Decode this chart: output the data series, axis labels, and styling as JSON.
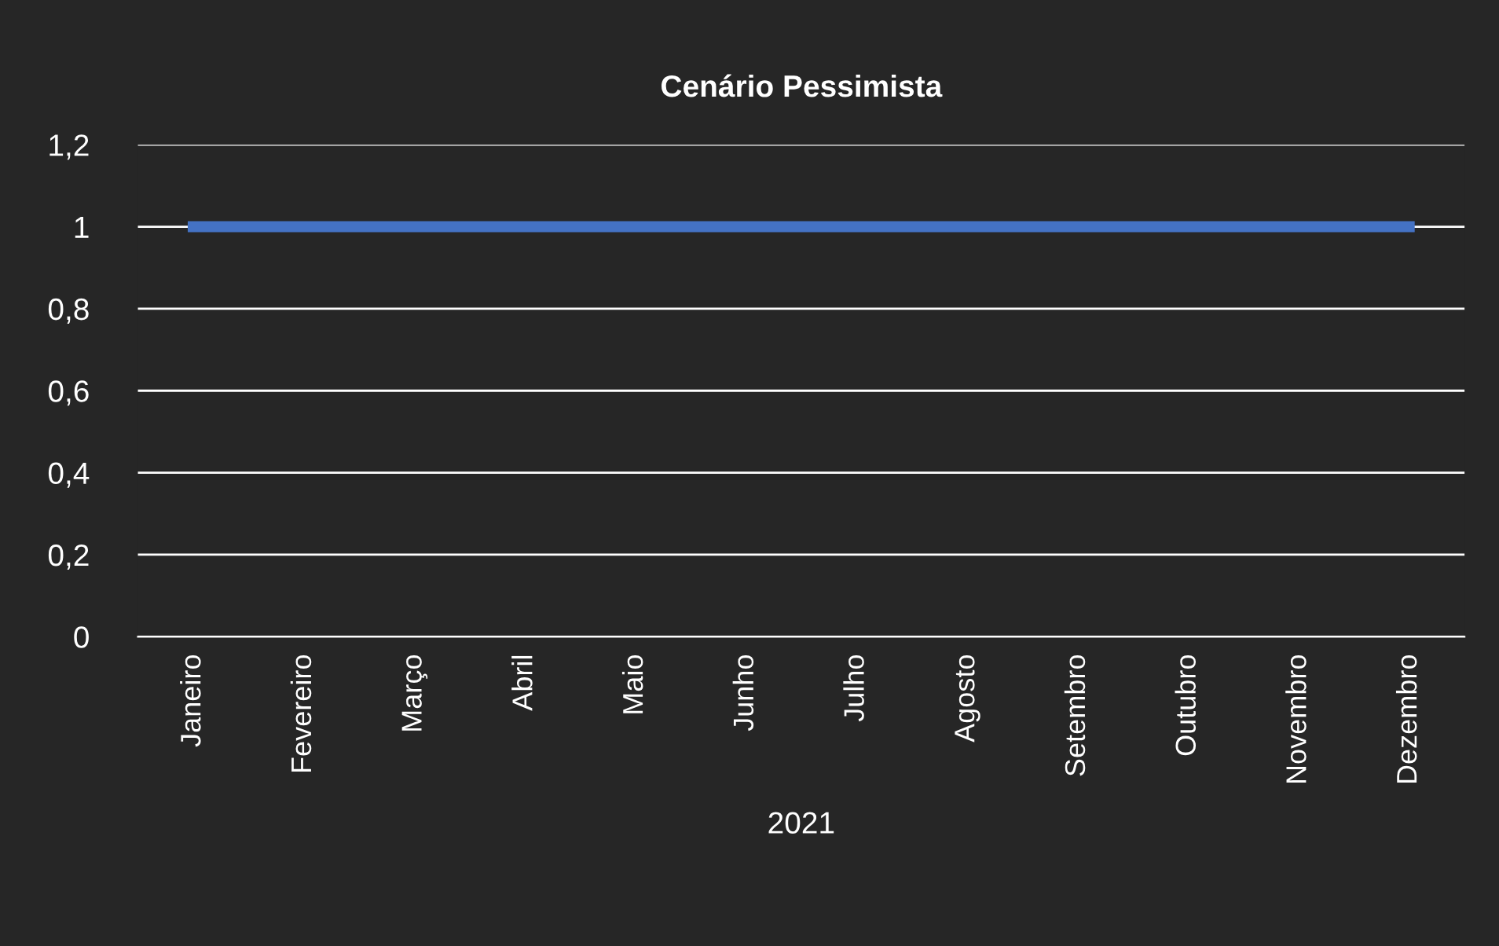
{
  "chart_data": {
    "type": "line",
    "title": "Cenário Pessimista",
    "xlabel": "2021",
    "categories": [
      "Janeiro",
      "Fevereiro",
      "Março",
      "Abril",
      "Maio",
      "Junho",
      "Julho",
      "Agosto",
      "Setembro",
      "Outubro",
      "Novembro",
      "Dezembro"
    ],
    "series": [
      {
        "color": "#4472c4",
        "values": [
          1,
          1,
          1,
          1,
          1,
          1,
          1,
          1,
          1,
          1,
          1,
          1
        ]
      }
    ],
    "ylim": [
      0,
      1.2
    ],
    "yticks": [
      0,
      {
        "value": 0.2,
        "label": "0,2"
      },
      {
        "value": 0.4,
        "label": "0,4"
      },
      {
        "value": 0.6,
        "label": "0,6"
      },
      {
        "value": 0.8,
        "label": "0,8"
      },
      1,
      {
        "value": 1.2,
        "label": "1,2"
      }
    ],
    "grid": "y",
    "legend": false,
    "marker": "none",
    "line_style": "solid"
  }
}
